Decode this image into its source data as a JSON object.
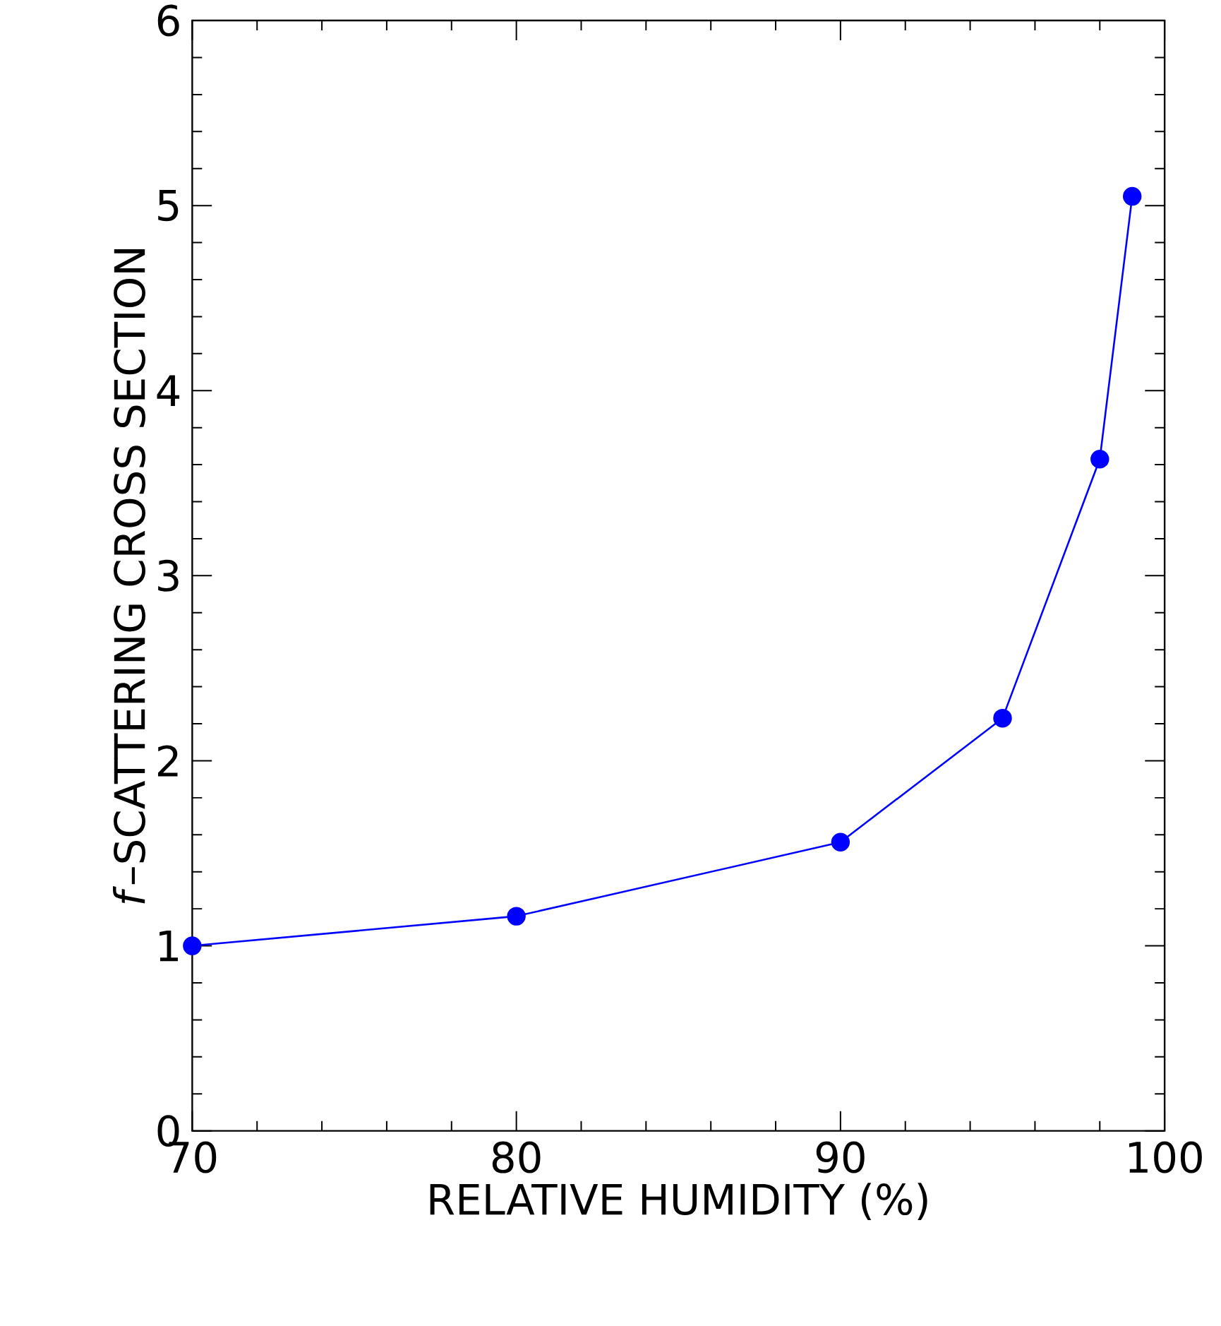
{
  "chart_data": {
    "type": "line",
    "xlabel": "RELATIVE HUMIDITY (%)",
    "ylabel": "*f*–SCATTERING CROSS SECTION",
    "x": [
      70,
      80,
      90,
      95,
      98,
      99
    ],
    "series": [
      {
        "color": "#0000ff",
        "values": [
          1.0,
          1.16,
          1.56,
          2.23,
          3.63,
          5.05
        ]
      }
    ],
    "xlim": [
      70,
      100
    ],
    "ylim": [
      0,
      6
    ],
    "xticks": [
      70,
      80,
      90,
      100
    ],
    "yticks": [
      0,
      1,
      2,
      3,
      4,
      5,
      6
    ],
    "marker": "circle",
    "line_style": "solid"
  }
}
